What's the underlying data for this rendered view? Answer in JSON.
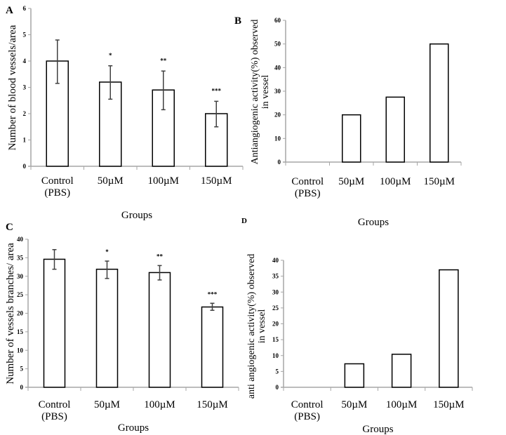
{
  "chart_data": [
    {
      "panel": "A",
      "type": "bar",
      "categories": [
        "Control\n(PBS)",
        "50µM",
        "100µM",
        "150µM"
      ],
      "values": [
        4.0,
        3.2,
        2.9,
        2.0
      ],
      "error_low": [
        3.15,
        2.55,
        2.15,
        1.5
      ],
      "error_high": [
        4.8,
        3.82,
        3.62,
        2.47
      ],
      "significance": [
        "",
        "*",
        "**",
        "***"
      ],
      "title": "",
      "xlabel": "Groups",
      "ylabel": "Number of blood vessels/area",
      "ylim": [
        0,
        6
      ],
      "yticks": [
        0,
        1,
        2,
        3,
        4,
        5,
        6
      ],
      "grid": false
    },
    {
      "panel": "B",
      "type": "bar",
      "categories": [
        "Control\n(PBS)",
        "50µM",
        "100µM",
        "150µM"
      ],
      "values": [
        0,
        20,
        27.5,
        50
      ],
      "title": "",
      "xlabel": "Groups",
      "ylabel": "Antiangiogenic activity(%) observed\nin vessel",
      "ylim": [
        0,
        60
      ],
      "yticks": [
        0,
        10,
        20,
        30,
        40,
        50,
        60
      ],
      "grid": false
    },
    {
      "panel": "C",
      "type": "bar",
      "categories": [
        "Control\n(PBS)",
        "50µM",
        "100µM",
        "150µM"
      ],
      "values": [
        34.6,
        31.9,
        31.0,
        21.7
      ],
      "error_low": [
        31.9,
        29.4,
        29.0,
        20.8
      ],
      "error_high": [
        37.2,
        34.1,
        32.9,
        22.7
      ],
      "significance": [
        "",
        "*",
        "**",
        "***"
      ],
      "title": "",
      "xlabel": "Groups",
      "ylabel": "Number of vessels branches/ area",
      "ylim": [
        0,
        40
      ],
      "yticks": [
        0,
        5,
        10,
        15,
        20,
        25,
        30,
        35,
        40
      ],
      "grid": false
    },
    {
      "panel": "D",
      "type": "bar",
      "categories": [
        "Control\n(PBS)",
        "50µM",
        "100µM",
        "150µM"
      ],
      "values": [
        0,
        7.4,
        10.4,
        37
      ],
      "title": "",
      "xlabel": "Groups",
      "ylabel": "anti angiogenic activity(%) observed\nin vessel",
      "ylim": [
        0,
        40
      ],
      "yticks": [
        0,
        5,
        10,
        15,
        20,
        25,
        30,
        35,
        40
      ],
      "grid": false
    }
  ],
  "colors": {
    "bar_fill": "#ffffff",
    "bar_edge": "#000000",
    "axis": "#a6a6a6",
    "error_bar": "#404040"
  }
}
